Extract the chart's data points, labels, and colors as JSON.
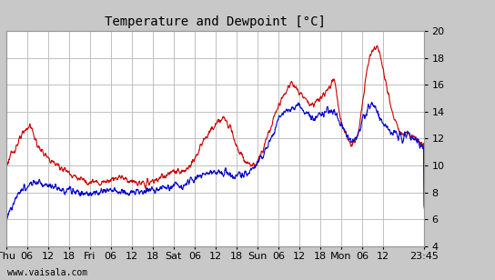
{
  "title": "Temperature and Dewpoint [°C]",
  "ylim": [
    4,
    20
  ],
  "x_tick_labels": [
    "Thu",
    "06",
    "12",
    "18",
    "Fri",
    "06",
    "12",
    "18",
    "Sat",
    "06",
    "12",
    "18",
    "Sun",
    "06",
    "12",
    "18",
    "Mon",
    "06",
    "12",
    "23:45"
  ],
  "watermark": "www.vaisala.com",
  "bg_color": "#c8c8c8",
  "plot_bg_color": "#ffffff",
  "temp_color": "#cc0000",
  "dew_color": "#0000cc",
  "grid_color": "#c0c0c0",
  "title_fontsize": 10,
  "tick_fontsize": 8,
  "watermark_fontsize": 7,
  "total_hours": 119.75,
  "tick_positions": [
    0,
    6,
    12,
    18,
    24,
    30,
    36,
    42,
    48,
    54,
    60,
    66,
    72,
    78,
    84,
    90,
    96,
    102,
    108,
    119.75
  ]
}
